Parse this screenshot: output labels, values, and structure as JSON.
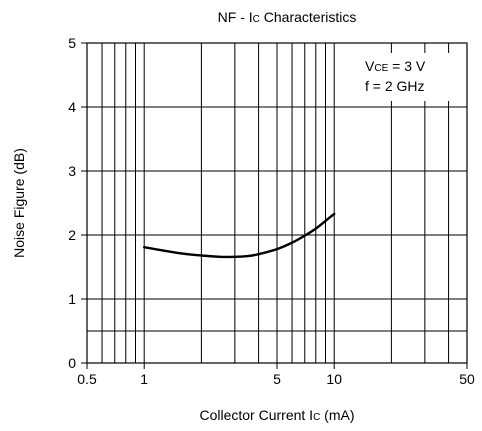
{
  "chart_data": {
    "type": "line",
    "title_main": "NF - I",
    "title_sub": "C",
    "title_rest": " Characteristics",
    "xlabel_main": "Collector Current I",
    "xlabel_sub": "C",
    "xlabel_rest": " (mA)",
    "ylabel": "Noise Figure (dB)",
    "x_scale": "log",
    "xlim": [
      0.5,
      50
    ],
    "ylim": [
      0,
      5
    ],
    "x_ticks": [
      {
        "value": 0.5,
        "label": "0.5"
      },
      {
        "value": 1,
        "label": "1"
      },
      {
        "value": 5,
        "label": "5"
      },
      {
        "value": 10,
        "label": "10"
      },
      {
        "value": 50,
        "label": "50"
      }
    ],
    "y_ticks": [
      {
        "value": 0,
        "label": "0"
      },
      {
        "value": 1,
        "label": "1"
      },
      {
        "value": 2,
        "label": "2"
      },
      {
        "value": 3,
        "label": "3"
      },
      {
        "value": 4,
        "label": "4"
      },
      {
        "value": 5,
        "label": "5"
      }
    ],
    "x_grid": [
      0.5,
      0.6,
      0.7,
      0.8,
      0.9,
      1,
      2,
      3,
      4,
      5,
      6,
      7,
      8,
      9,
      10,
      20,
      30,
      40,
      50
    ],
    "y_grid": [
      0,
      0.5,
      1,
      2,
      3,
      4,
      5
    ],
    "grid": true,
    "annotation": {
      "line1_main": "V",
      "line1_sub": "CE",
      "line1_rest": " = 3 V",
      "line2": "f = 2 GHz",
      "placement": "top-right"
    },
    "series": [
      {
        "x": [
          1,
          1.5,
          2,
          2.5,
          3,
          3.5,
          4,
          5,
          6,
          7,
          8,
          9,
          10
        ],
        "y": [
          1.81,
          1.72,
          1.68,
          1.66,
          1.66,
          1.67,
          1.7,
          1.78,
          1.88,
          1.99,
          2.1,
          2.22,
          2.33
        ],
        "color": "#000000"
      }
    ]
  }
}
